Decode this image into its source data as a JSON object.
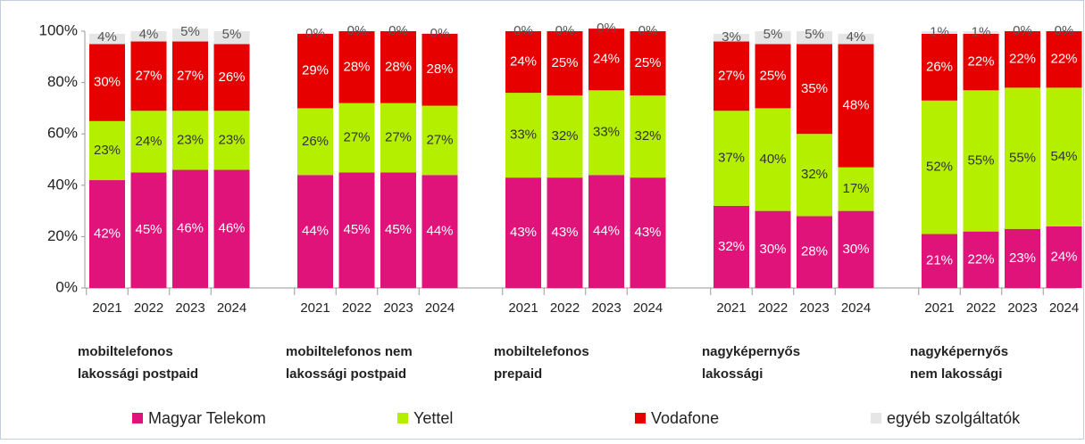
{
  "chart_data": {
    "type": "stacked_bar",
    "categories": [
      "2021",
      "2022",
      "2023",
      "2024",
      "2021",
      "2022",
      "2023",
      "2024",
      "2021",
      "2022",
      "2023",
      "2024",
      "2021",
      "2022",
      "2023",
      "2024",
      "2021",
      "2022",
      "2023",
      "2024"
    ],
    "groups": [
      [
        "mobiltelefonos",
        "lakossági  postpaid"
      ],
      [
        "mobiltelefonos  nem",
        "lakossági  postpaid"
      ],
      [
        "mobiltelefonos",
        "prepaid"
      ],
      [
        "nagyképernyős",
        "lakossági"
      ],
      [
        "nagyképernyős",
        "nem lakossági"
      ]
    ],
    "series": [
      {
        "name": "Magyar Telekom",
        "color": "#e0137a",
        "values": [
          42,
          45,
          46,
          46,
          44,
          45,
          45,
          44,
          43,
          43,
          44,
          43,
          32,
          30,
          28,
          30,
          21,
          22,
          23,
          24
        ],
        "value_labels": [
          "42%",
          "45%",
          "46%",
          "46%",
          "44%",
          "45%",
          "45%",
          "44%",
          "43%",
          "43%",
          "44%",
          "43%",
          "32%",
          "30%",
          "28%",
          "30%",
          "21%",
          "22%",
          "23%",
          "24%"
        ]
      },
      {
        "name": "Yettel",
        "color": "#b5ef00",
        "values": [
          23,
          24,
          23,
          23,
          26,
          27,
          27,
          27,
          33,
          32,
          33,
          32,
          37,
          40,
          32,
          17,
          52,
          55,
          55,
          54
        ],
        "value_labels": [
          "23%",
          "24%",
          "23%",
          "23%",
          "26%",
          "27%",
          "27%",
          "27%",
          "33%",
          "32%",
          "33%",
          "32%",
          "37%",
          "40%",
          "32%",
          "17%",
          "52%",
          "55%",
          "55%",
          "54%"
        ]
      },
      {
        "name": "Vodafone",
        "color": "#e60000",
        "values": [
          30,
          27,
          27,
          26,
          29,
          28,
          28,
          28,
          24,
          25,
          24,
          25,
          27,
          25,
          35,
          48,
          26,
          22,
          22,
          22
        ],
        "value_labels": [
          "30%",
          "27%",
          "27%",
          "26%",
          "29%",
          "28%",
          "28%",
          "28%",
          "24%",
          "25%",
          "24%",
          "25%",
          "27%",
          "25%",
          "35%",
          "48%",
          "26%",
          "22%",
          "22%",
          "22%"
        ]
      },
      {
        "name": "egyéb szolgáltatók",
        "color": "#e6e6e6",
        "values": [
          4,
          4,
          5,
          5,
          0,
          0,
          0,
          0,
          0,
          0,
          0,
          0,
          3,
          5,
          5,
          4,
          1,
          1,
          0,
          0
        ],
        "value_labels": [
          "4%",
          "4%",
          "5%",
          "5%",
          "0%",
          "0%",
          "0%",
          "0%",
          "0%",
          "0%",
          "0%",
          "0%",
          "3%",
          "5%",
          "5%",
          "4%",
          "1%",
          "1%",
          "0%",
          "0%"
        ]
      }
    ],
    "ylim": [
      0,
      100
    ],
    "yticks": [
      {
        "value": 0,
        "label": "0%"
      },
      {
        "value": 20,
        "label": "20%"
      },
      {
        "value": 40,
        "label": "40%"
      },
      {
        "value": 60,
        "label": "60%"
      },
      {
        "value": 80,
        "label": "80%"
      },
      {
        "value": 100,
        "label": "100%"
      }
    ],
    "legend": "bottom"
  }
}
